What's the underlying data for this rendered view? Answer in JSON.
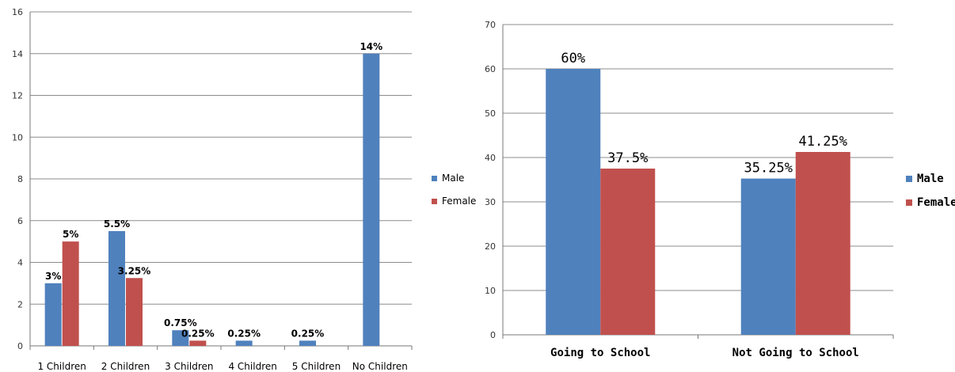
{
  "chart_data": [
    {
      "type": "bar",
      "title": "",
      "xlabel": "",
      "ylabel": "",
      "ylim": [
        0,
        16
      ],
      "yticks": [
        0,
        2,
        4,
        6,
        8,
        10,
        12,
        14,
        16
      ],
      "grid": true,
      "legend_position": "right",
      "categories": [
        "1 Children",
        "2 Children",
        "3 Children",
        "4 Children",
        "5 Children",
        "No Children"
      ],
      "series": [
        {
          "name": "Male",
          "color": "#4f81bd",
          "values": [
            3,
            5.5,
            0.75,
            0.25,
            0.25,
            14
          ],
          "labels": [
            "3%",
            "5.5%",
            "0.75%",
            "0.25%",
            "0.25%",
            "14%"
          ]
        },
        {
          "name": "Female",
          "color": "#c0504d",
          "values": [
            5,
            3.25,
            0.25,
            null,
            null,
            null
          ],
          "labels": [
            "5%",
            "3.25%",
            "0.25%",
            null,
            null,
            null
          ]
        }
      ]
    },
    {
      "type": "bar",
      "title": "",
      "xlabel": "",
      "ylabel": "",
      "ylim": [
        0,
        70
      ],
      "yticks": [
        0,
        10,
        20,
        30,
        40,
        50,
        60,
        70
      ],
      "grid": true,
      "legend_position": "right",
      "categories": [
        "Going to School",
        "Not Going to School"
      ],
      "series": [
        {
          "name": "Male",
          "color": "#4f81bd",
          "values": [
            60,
            35.25
          ],
          "labels": [
            "60%",
            "35.25%"
          ]
        },
        {
          "name": "Female",
          "color": "#c0504d",
          "values": [
            37.5,
            41.25
          ],
          "labels": [
            "37.5%",
            "41.25%"
          ]
        }
      ]
    }
  ]
}
